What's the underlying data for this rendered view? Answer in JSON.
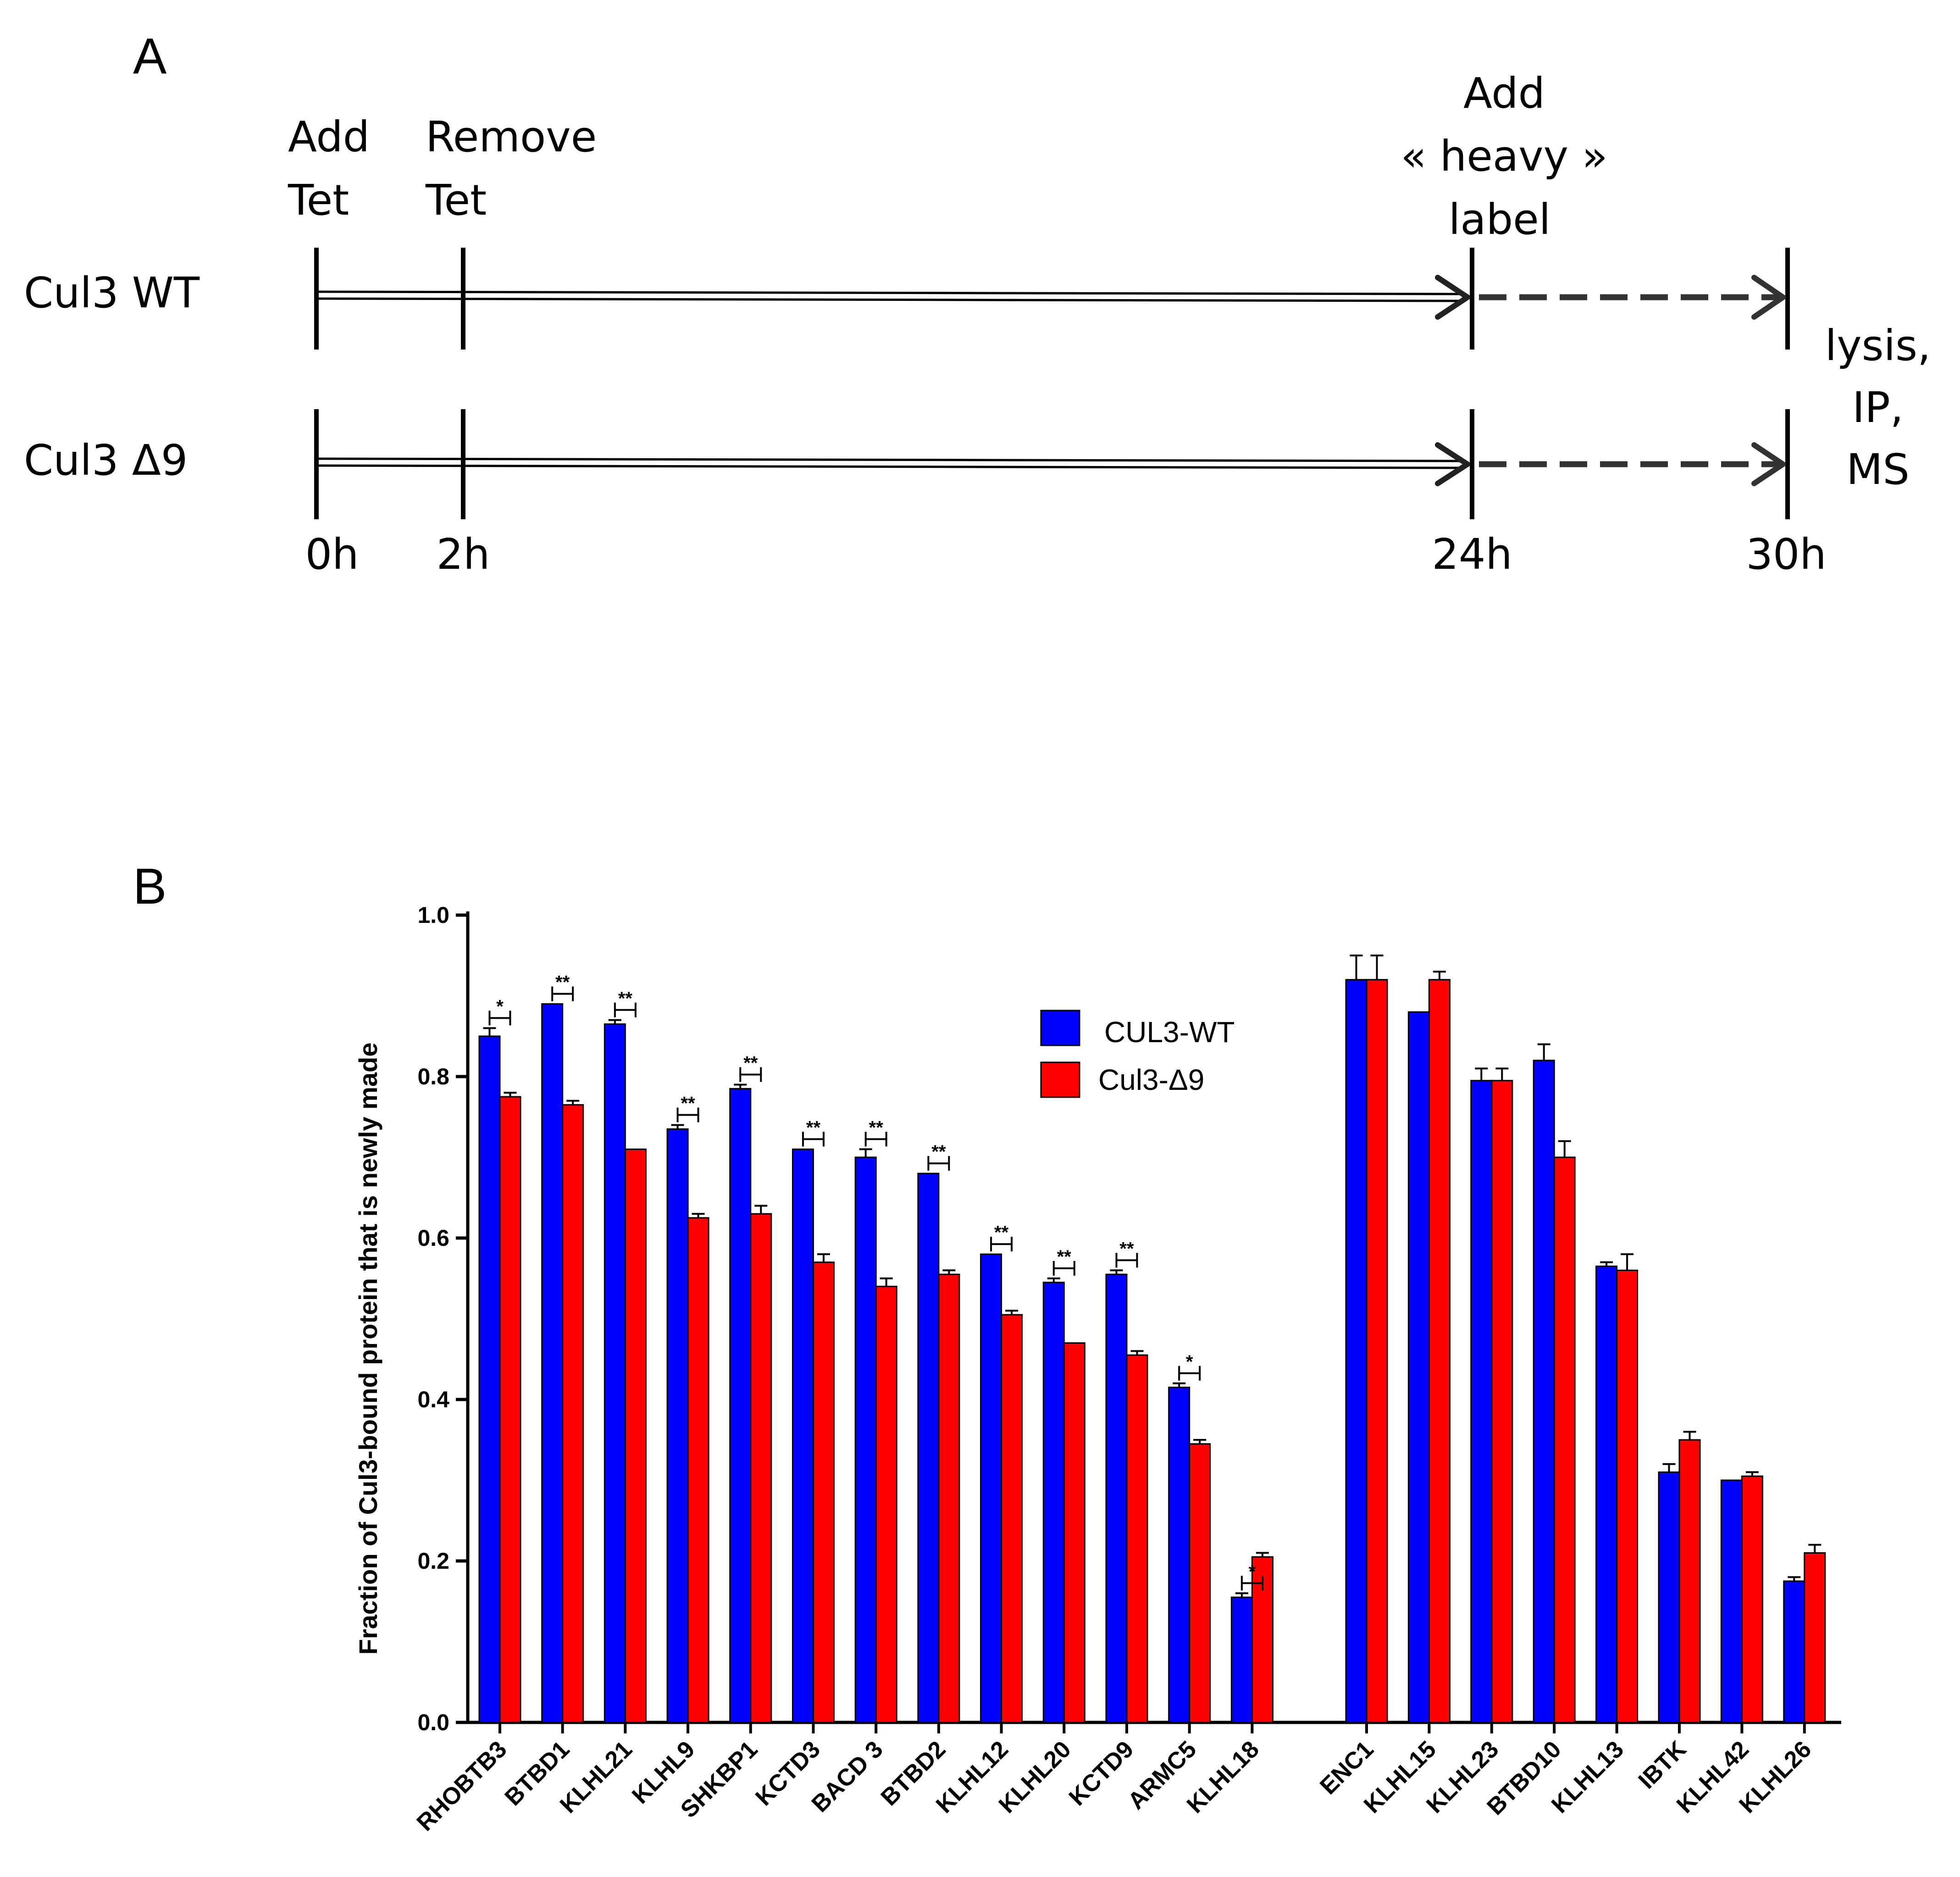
{
  "panels": {
    "a_label": "A",
    "b_label": "B"
  },
  "timeline": {
    "rows": [
      "Cul3 WT",
      "Cul3 Δ9"
    ],
    "events": [
      {
        "lines": [
          "Add",
          "Tet"
        ]
      },
      {
        "lines": [
          "Remove",
          "Tet"
        ]
      },
      {
        "lines": [
          "Add",
          "« heavy »",
          "label"
        ]
      }
    ],
    "end_note": [
      "lysis,",
      "IP,",
      "MS"
    ],
    "time_labels": [
      "0h",
      "2h",
      "24h",
      "30h"
    ]
  },
  "colors": {
    "wt": "#0000FF",
    "d9": "#FF0000",
    "axis": "#000000"
  },
  "chart_data": {
    "type": "bar",
    "title": "",
    "xlabel": "",
    "ylabel": "Fraction of Cul3-bound protein that is newly made",
    "ylim": [
      0,
      1.0
    ],
    "yticks": [
      "0.0",
      "0.2",
      "0.4",
      "0.6",
      "0.8",
      "1.0"
    ],
    "legend_position": "top-center",
    "categories": [
      "RHOBTB3",
      "BTBD1",
      "KLHL21",
      "KLHL9",
      "SHKBP1",
      "KCTD3",
      "BACD 3",
      "BTBD2",
      "KLHL12",
      "KLHL20",
      "KCTD9",
      "ARMC5",
      "KLHL18",
      "ENC1",
      "KLHL15",
      "KLHL23",
      "BTBD10",
      "KLHL13",
      "IBTK",
      "KLHL42",
      "KLHL26"
    ],
    "series": [
      {
        "name": "CUL3-WT",
        "values": [
          0.85,
          0.89,
          0.865,
          0.735,
          0.785,
          0.71,
          0.7,
          0.68,
          0.58,
          0.545,
          0.555,
          0.415,
          0.155,
          0.92,
          0.88,
          0.795,
          0.82,
          0.565,
          0.31,
          0.3,
          0.175
        ],
        "errors": [
          0.01,
          0.0,
          0.005,
          0.005,
          0.005,
          0.0,
          0.01,
          0.0,
          0.0,
          0.005,
          0.005,
          0.005,
          0.005,
          0.03,
          0.0,
          0.015,
          0.02,
          0.005,
          0.01,
          0.0,
          0.005
        ]
      },
      {
        "name": "Cul3-Δ9",
        "values": [
          0.775,
          0.765,
          0.71,
          0.625,
          0.63,
          0.57,
          0.54,
          0.555,
          0.505,
          0.47,
          0.455,
          0.345,
          0.205,
          0.92,
          0.92,
          0.795,
          0.7,
          0.56,
          0.35,
          0.305,
          0.21
        ],
        "errors": [
          0.005,
          0.005,
          0.0,
          0.005,
          0.01,
          0.01,
          0.01,
          0.005,
          0.005,
          0.0,
          0.005,
          0.005,
          0.005,
          0.03,
          0.01,
          0.015,
          0.02,
          0.02,
          0.01,
          0.005,
          0.01
        ]
      }
    ],
    "significance": [
      "*",
      "**",
      "**",
      "**",
      "**",
      "**",
      "**",
      "**",
      "**",
      "**",
      "**",
      "*",
      "*",
      "",
      "",
      "",
      "",
      "",
      "",
      "",
      ""
    ]
  }
}
